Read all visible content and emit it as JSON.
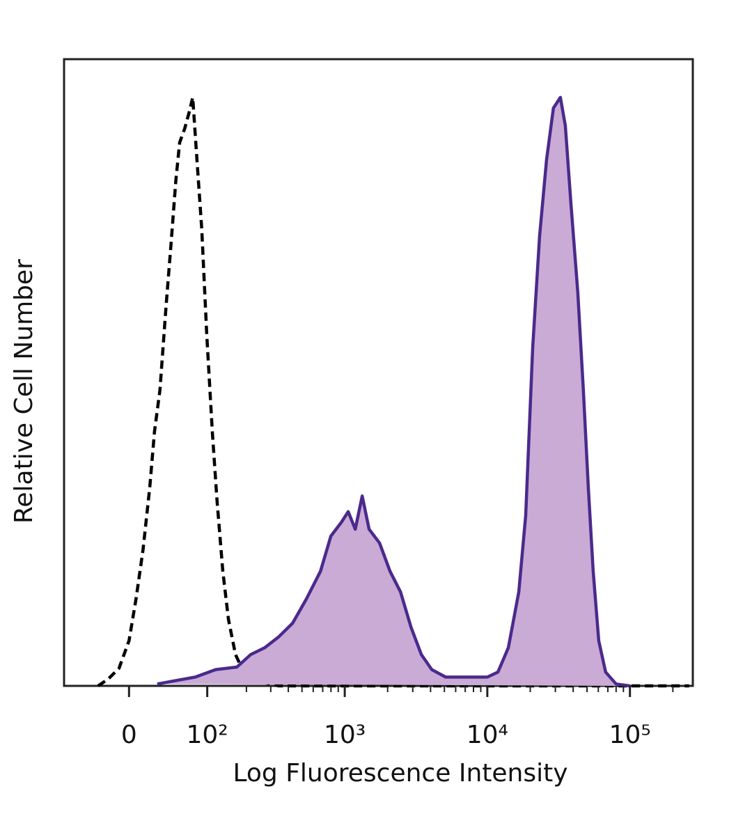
{
  "chart_data": {
    "type": "histogram-overlay",
    "x_label": "Log Fluorescence Intensity",
    "y_label": "Relative Cell Number",
    "xscale": "asinh",
    "xlim": [
      -77,
      276000
    ],
    "ylim": [
      0,
      100
    ],
    "xticks": [
      0,
      {
        "value": 100,
        "label": "10²"
      },
      {
        "value": 1000,
        "label": "10³"
      },
      {
        "value": 10000,
        "label": "10⁴"
      },
      {
        "value": 100000,
        "label": "10⁵"
      }
    ],
    "xminorticks": [
      200,
      300,
      400,
      500,
      600,
      700,
      800,
      900,
      2000,
      3000,
      4000,
      5000,
      6000,
      7000,
      8000,
      9000,
      20000,
      30000,
      40000,
      50000,
      60000,
      70000,
      80000,
      90000,
      200000
    ],
    "series": [
      {
        "color": "#000000",
        "style": "dashed",
        "x": [
          -32,
          -21,
          -10,
          0,
          7,
          14,
          21,
          26,
          32,
          39,
          45,
          51,
          56,
          63,
          70,
          75,
          81,
          90,
          99,
          110,
          120,
          133,
          147,
          166,
          191,
          242,
          341,
          1058,
          10000,
          260000
        ],
        "values": [
          0,
          1.1,
          2.8,
          7.2,
          13.9,
          21.7,
          31.7,
          40.6,
          47.2,
          60.6,
          70.6,
          80.6,
          86.7,
          88.9,
          91.7,
          93.9,
          85,
          72.8,
          56.1,
          40.6,
          29.4,
          18.3,
          10.6,
          5,
          2.2,
          0.8,
          0,
          0,
          0,
          0
        ]
      },
      {
        "color": "#4a2a8c",
        "fill": "#c9abd6",
        "style": "filled",
        "x": [
          29,
          49,
          79,
          117,
          170,
          215,
          272,
          341,
          429,
          538,
          675,
          799,
          946,
          1058,
          1185,
          1326,
          1483,
          1755,
          2077,
          2461,
          2914,
          3446,
          4081,
          5107,
          7152,
          10000,
          11863,
          14047,
          16620,
          18590,
          20790,
          23250,
          26000,
          29080,
          32530,
          35220,
          38530,
          43110,
          47160,
          51040,
          55230,
          60420,
          67580,
          79960,
          100000
        ],
        "values": [
          0.3,
          0.8,
          1.4,
          2.6,
          3,
          5,
          6.1,
          7.8,
          10,
          13.9,
          18.3,
          23.9,
          26.1,
          27.8,
          25,
          30.3,
          25,
          22.8,
          18.3,
          15,
          9.4,
          5,
          2.6,
          1.4,
          1.4,
          1.4,
          2.2,
          6.1,
          15,
          27.2,
          53.9,
          71.7,
          83.9,
          92.2,
          93.9,
          89.4,
          77.2,
          62.8,
          47.2,
          31.7,
          18.3,
          7.2,
          2.2,
          0.3,
          0
        ]
      }
    ]
  }
}
